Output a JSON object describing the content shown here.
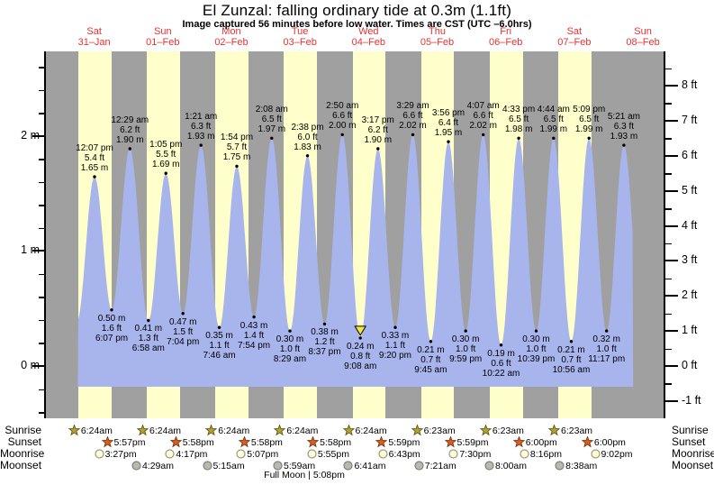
{
  "title": "El Zunzal: falling  ordinary tide at 0.3m (1.1ft)",
  "subtitle": "Image captured 56 minutes before low water. Times are CST (UTC –6.0hrs)",
  "days": [
    {
      "day": 1,
      "name": "Sat",
      "date": "31–Jan"
    },
    {
      "day": 2,
      "name": "Sun",
      "date": "01–Feb"
    },
    {
      "day": 3,
      "name": "Mon",
      "date": "02–Feb"
    },
    {
      "day": 4,
      "name": "Tue",
      "date": "03–Feb"
    },
    {
      "day": 5,
      "name": "Wed",
      "date": "04–Feb"
    },
    {
      "day": 6,
      "name": "Thu",
      "date": "05–Feb"
    },
    {
      "day": 7,
      "name": "Fri",
      "date": "06–Feb"
    },
    {
      "day": 8,
      "name": "Sat",
      "date": "07–Feb"
    },
    {
      "day": 9,
      "name": "Sun",
      "date": "08–Feb"
    }
  ],
  "axes": {
    "left": [
      {
        "m": 0,
        "label": "0 m"
      },
      {
        "m": 1,
        "label": "1 m"
      },
      {
        "m": 2,
        "label": "2 m"
      }
    ],
    "right": [
      {
        "ft": -1,
        "label": "-1 ft"
      },
      {
        "ft": 0,
        "label": "0 ft"
      },
      {
        "ft": 1,
        "label": "1 ft"
      },
      {
        "ft": 2,
        "label": "2 ft"
      },
      {
        "ft": 3,
        "label": "3 ft"
      },
      {
        "ft": 4,
        "label": "4 ft"
      },
      {
        "ft": 5,
        "label": "5 ft"
      },
      {
        "ft": 6,
        "label": "6 ft"
      },
      {
        "ft": 7,
        "label": "7 ft"
      },
      {
        "ft": 8,
        "label": "8 ft"
      }
    ]
  },
  "chart_data": {
    "type": "area",
    "title": "El Zunzal: falling  ordinary tide at 0.3m (1.1ft)",
    "ylabel_left": "meters",
    "ylabel_right": "feet",
    "ylim_ft": [
      -1,
      8
    ],
    "events": [
      {
        "type": "high",
        "day": 1,
        "time": "12:07 pm",
        "ft": "5.4 ft",
        "m": "1.65 m"
      },
      {
        "type": "low",
        "day": 1,
        "time": "6:07 pm",
        "ft": "1.6 ft",
        "m": "0.50 m"
      },
      {
        "type": "high",
        "day": 2,
        "time": "12:29 am",
        "ft": "6.2 ft",
        "m": "1.90 m"
      },
      {
        "type": "low",
        "day": 2,
        "time": "6:58 am",
        "ft": "1.3 ft",
        "m": "0.41 m"
      },
      {
        "type": "high",
        "day": 2,
        "time": "1:05 pm",
        "ft": "5.5 ft",
        "m": "1.69 m"
      },
      {
        "type": "low",
        "day": 2,
        "time": "7:04 pm",
        "ft": "1.5 ft",
        "m": "0.47 m"
      },
      {
        "type": "high",
        "day": 3,
        "time": "1:21 am",
        "ft": "6.3 ft",
        "m": "1.93 m"
      },
      {
        "type": "low",
        "day": 3,
        "time": "7:46 am",
        "ft": "1.1 ft",
        "m": "0.35 m"
      },
      {
        "type": "high",
        "day": 3,
        "time": "1:54 pm",
        "ft": "5.7 ft",
        "m": "1.75 m"
      },
      {
        "type": "low",
        "day": 3,
        "time": "7:54 pm",
        "ft": "1.4 ft",
        "m": "0.43 m"
      },
      {
        "type": "high",
        "day": 4,
        "time": "2:08 am",
        "ft": "6.5 ft",
        "m": "1.97 m"
      },
      {
        "type": "low",
        "day": 4,
        "time": "8:29 am",
        "ft": "1.0 ft",
        "m": "0.30 m"
      },
      {
        "type": "high",
        "day": 4,
        "time": "2:38 pm",
        "ft": "6.0 ft",
        "m": "1.83 m"
      },
      {
        "type": "low",
        "day": 4,
        "time": "8:37 pm",
        "ft": "1.2 ft",
        "m": "0.38 m"
      },
      {
        "type": "high",
        "day": 5,
        "time": "2:50 am",
        "ft": "6.6 ft",
        "m": "2.00 m"
      },
      {
        "type": "low",
        "day": 5,
        "time": "9:08 am",
        "ft": "0.8 ft",
        "m": "0.24 m",
        "current": true
      },
      {
        "type": "high",
        "day": 5,
        "time": "3:17 pm",
        "ft": "6.2 ft",
        "m": "1.90 m"
      },
      {
        "type": "low",
        "day": 5,
        "time": "9:20 pm",
        "ft": "1.1 ft",
        "m": "0.33 m"
      },
      {
        "type": "high",
        "day": 6,
        "time": "3:29 am",
        "ft": "6.6 ft",
        "m": "2.02 m"
      },
      {
        "type": "low",
        "day": 6,
        "time": "9:45 am",
        "ft": "0.7 ft",
        "m": "0.21 m"
      },
      {
        "type": "high",
        "day": 6,
        "time": "3:56 pm",
        "ft": "6.4 ft",
        "m": "1.95 m"
      },
      {
        "type": "low",
        "day": 6,
        "time": "9:59 pm",
        "ft": "1.0 ft",
        "m": "0.30 m"
      },
      {
        "type": "high",
        "day": 7,
        "time": "4:07 am",
        "ft": "6.6 ft",
        "m": "2.02 m"
      },
      {
        "type": "low",
        "day": 7,
        "time": "10:22 am",
        "ft": "0.6 ft",
        "m": "0.19 m"
      },
      {
        "type": "high",
        "day": 7,
        "time": "4:33 pm",
        "ft": "6.5 ft",
        "m": "1.98 m"
      },
      {
        "type": "low",
        "day": 7,
        "time": "10:39 pm",
        "ft": "1.0 ft",
        "m": "0.30 m"
      },
      {
        "type": "high",
        "day": 8,
        "time": "4:44 am",
        "ft": "6.5 ft",
        "m": "1.99 m"
      },
      {
        "type": "low",
        "day": 8,
        "time": "10:56 am",
        "ft": "0.7 ft",
        "m": "0.21 m"
      },
      {
        "type": "high",
        "day": 8,
        "time": "5:09 pm",
        "ft": "6.5 ft",
        "m": "1.99 m"
      },
      {
        "type": "low",
        "day": 8,
        "time": "11:17 pm",
        "ft": "1.0 ft",
        "m": "0.32 m"
      },
      {
        "type": "high",
        "day": 9,
        "time": "5:21 am",
        "ft": "6.3 ft",
        "m": "1.93 m"
      }
    ]
  },
  "sun_moon": {
    "rows": [
      {
        "key": "sunrise",
        "label": "Sunrise"
      },
      {
        "key": "sunset",
        "label": "Sunset"
      },
      {
        "key": "moonrise",
        "label": "Moonrise"
      },
      {
        "key": "moonset",
        "label": "Moonset"
      }
    ],
    "sunrise": [
      {
        "day": 1,
        "time": "6:24am"
      },
      {
        "day": 2,
        "time": "6:24am"
      },
      {
        "day": 3,
        "time": "6:24am"
      },
      {
        "day": 4,
        "time": "6:24am"
      },
      {
        "day": 5,
        "time": "6:24am"
      },
      {
        "day": 6,
        "time": "6:23am"
      },
      {
        "day": 7,
        "time": "6:23am"
      },
      {
        "day": 8,
        "time": "6:23am"
      }
    ],
    "sunset": [
      {
        "day": 1,
        "time": "5:57pm"
      },
      {
        "day": 2,
        "time": "5:58pm"
      },
      {
        "day": 3,
        "time": "5:58pm"
      },
      {
        "day": 4,
        "time": "5:58pm"
      },
      {
        "day": 5,
        "time": "5:59pm"
      },
      {
        "day": 6,
        "time": "5:59pm"
      },
      {
        "day": 7,
        "time": "6:00pm"
      },
      {
        "day": 8,
        "time": "6:00pm"
      }
    ],
    "moonrise": [
      {
        "day": 1,
        "time": "3:27pm"
      },
      {
        "day": 2,
        "time": "4:17pm"
      },
      {
        "day": 3,
        "time": "5:07pm"
      },
      {
        "day": 4,
        "time": "5:55pm"
      },
      {
        "day": 5,
        "time": "6:43pm"
      },
      {
        "day": 6,
        "time": "7:30pm"
      },
      {
        "day": 7,
        "time": "8:16pm"
      },
      {
        "day": 8,
        "time": "9:02pm"
      }
    ],
    "moonset": [
      {
        "day": 2,
        "time": "4:29am"
      },
      {
        "day": 3,
        "time": "5:15am"
      },
      {
        "day": 4,
        "time": "5:59am"
      },
      {
        "day": 5,
        "time": "6:41am"
      },
      {
        "day": 6,
        "time": "7:21am"
      },
      {
        "day": 7,
        "time": "8:00am"
      },
      {
        "day": 8,
        "time": "8:38am"
      }
    ]
  },
  "full_moon": "Full Moon | 5:08pm",
  "colors": {
    "night_band": "#a0a0a0",
    "day_band": "#ffffcc",
    "tide_fill": "#a8b4ec",
    "day_label_red": "#e83232",
    "sunrise_star": "#b2a133",
    "sunrise_star_edge": "#5f5512",
    "sunset_star": "#d95f1e",
    "sunset_star_edge": "#7a3010",
    "moonrise_fill": "#ffffdd",
    "moonrise_edge": "#9a9a7a",
    "moonset_fill": "#b9b9b2",
    "moonset_edge": "#80807a",
    "current_marker": "#f2e83c"
  }
}
